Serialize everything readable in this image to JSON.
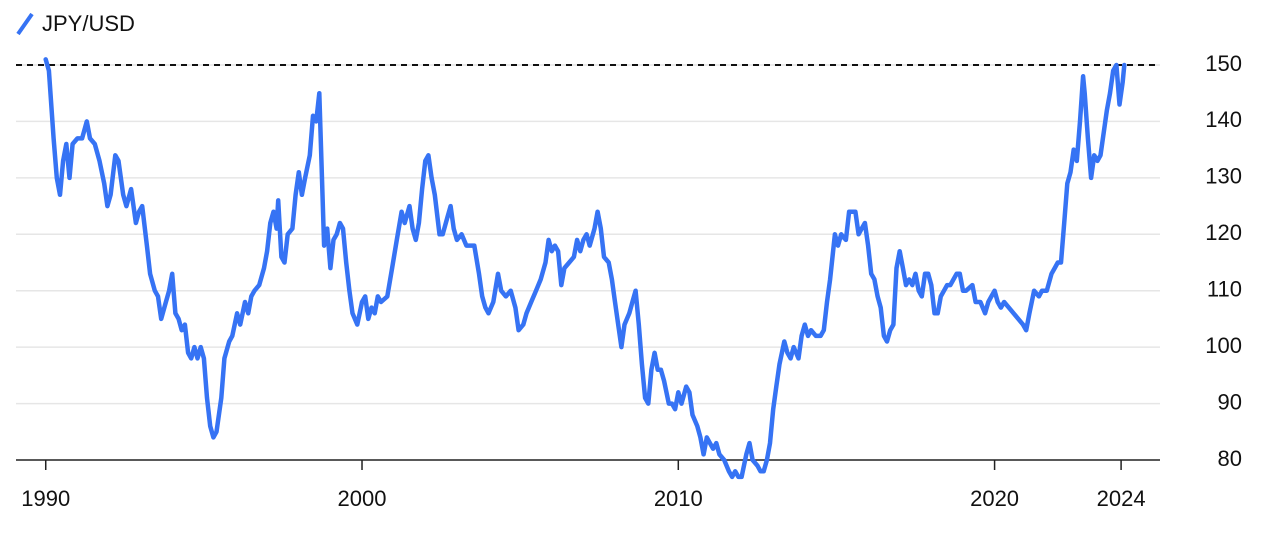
{
  "chart_data": {
    "type": "line",
    "xlim": [
      1989.06,
      2025.23
    ],
    "xticks": [
      1990,
      2000,
      2010,
      2020,
      2024
    ],
    "ylim": [
      80,
      150
    ],
    "yticks": [
      80,
      90,
      100,
      110,
      120,
      130,
      140,
      150
    ],
    "grid": true,
    "reference_line": 150,
    "legend": "top-left",
    "series": [
      {
        "name": "JPY/USD",
        "color": "#3673f4",
        "x": [
          1990.0,
          1990.1,
          1990.25,
          1990.35,
          1990.45,
          1990.55,
          1990.65,
          1990.75,
          1990.85,
          1991.0,
          1991.15,
          1991.3,
          1991.4,
          1991.55,
          1991.7,
          1991.85,
          1991.95,
          1992.05,
          1992.2,
          1992.3,
          1992.45,
          1992.55,
          1992.7,
          1992.85,
          1992.95,
          1993.05,
          1993.2,
          1993.3,
          1993.45,
          1993.55,
          1993.65,
          1993.8,
          1993.9,
          1994.0,
          1994.1,
          1994.2,
          1994.3,
          1994.4,
          1994.5,
          1994.6,
          1994.7,
          1994.8,
          1994.9,
          1995.0,
          1995.1,
          1995.2,
          1995.3,
          1995.4,
          1995.55,
          1995.65,
          1995.8,
          1995.9,
          1996.05,
          1996.15,
          1996.3,
          1996.4,
          1996.5,
          1996.6,
          1996.75,
          1996.9,
          1997.0,
          1997.1,
          1997.2,
          1997.3,
          1997.35,
          1997.45,
          1997.55,
          1997.65,
          1997.8,
          1997.9,
          1998.0,
          1998.1,
          1998.2,
          1998.35,
          1998.45,
          1998.55,
          1998.65,
          1998.8,
          1998.9,
          1999.0,
          1999.1,
          1999.2,
          1999.3,
          1999.4,
          1999.5,
          1999.6,
          1999.7,
          1999.85,
          2000.0,
          2000.1,
          2000.2,
          2000.3,
          2000.4,
          2000.5,
          2000.6,
          2000.8,
          2000.95,
          2001.1,
          2001.25,
          2001.35,
          2001.5,
          2001.6,
          2001.7,
          2001.8,
          2001.9,
          2002.0,
          2002.1,
          2002.2,
          2002.3,
          2002.45,
          2002.55,
          2002.7,
          2002.8,
          2002.9,
          2003.0,
          2003.15,
          2003.3,
          2003.4,
          2003.55,
          2003.7,
          2003.8,
          2003.9,
          2004.0,
          2004.15,
          2004.3,
          2004.4,
          2004.55,
          2004.7,
          2004.85,
          2004.95,
          2005.1,
          2005.2,
          2005.35,
          2005.5,
          2005.65,
          2005.8,
          2005.9,
          2006.0,
          2006.1,
          2006.2,
          2006.3,
          2006.4,
          2006.55,
          2006.7,
          2006.8,
          2006.9,
          2007.0,
          2007.1,
          2007.2,
          2007.35,
          2007.45,
          2007.55,
          2007.65,
          2007.8,
          2007.9,
          2008.0,
          2008.1,
          2008.2,
          2008.3,
          2008.45,
          2008.55,
          2008.65,
          2008.75,
          2008.85,
          2008.95,
          2009.05,
          2009.15,
          2009.25,
          2009.35,
          2009.45,
          2009.55,
          2009.7,
          2009.8,
          2009.9,
          2010.0,
          2010.1,
          2010.25,
          2010.35,
          2010.45,
          2010.6,
          2010.7,
          2010.8,
          2010.9,
          2011.0,
          2011.1,
          2011.2,
          2011.3,
          2011.45,
          2011.6,
          2011.7,
          2011.8,
          2011.9,
          2012.0,
          2012.15,
          2012.25,
          2012.35,
          2012.5,
          2012.6,
          2012.7,
          2012.8,
          2012.9,
          2013.0,
          2013.1,
          2013.2,
          2013.35,
          2013.45,
          2013.55,
          2013.65,
          2013.8,
          2013.9,
          2014.0,
          2014.1,
          2014.2,
          2014.35,
          2014.5,
          2014.6,
          2014.7,
          2014.8,
          2014.95,
          2015.05,
          2015.15,
          2015.3,
          2015.4,
          2015.5,
          2015.6,
          2015.7,
          2015.8,
          2015.9,
          2016.0,
          2016.1,
          2016.2,
          2016.3,
          2016.4,
          2016.5,
          2016.6,
          2016.7,
          2016.8,
          2016.9,
          2017.0,
          2017.1,
          2017.2,
          2017.3,
          2017.4,
          2017.5,
          2017.6,
          2017.7,
          2017.8,
          2017.9,
          2018.0,
          2018.1,
          2018.2,
          2018.3,
          2018.4,
          2018.5,
          2018.6,
          2018.7,
          2018.8,
          2018.9,
          2019.0,
          2019.1,
          2019.3,
          2019.4,
          2019.55,
          2019.7,
          2019.8,
          2019.9,
          2020.0,
          2020.1,
          2020.2,
          2020.3,
          2020.45,
          2020.6,
          2020.75,
          2020.9,
          2021.0,
          2021.1,
          2021.25,
          2021.4,
          2021.5,
          2021.65,
          2021.8,
          2021.9,
          2022.0,
          2022.1,
          2022.2,
          2022.3,
          2022.4,
          2022.5,
          2022.6,
          2022.7,
          2022.8,
          2022.85,
          2022.95,
          2023.05,
          2023.15,
          2023.25,
          2023.35,
          2023.45,
          2023.55,
          2023.65,
          2023.75,
          2023.85,
          2023.95,
          2024.05,
          2024.1
        ],
        "values": [
          151,
          149,
          137,
          130,
          127,
          133,
          136,
          130,
          136,
          137,
          137,
          140,
          137,
          136,
          133,
          129,
          125,
          127,
          134,
          133,
          127,
          125,
          128,
          122,
          124,
          125,
          118,
          113,
          110,
          109,
          105,
          108,
          110,
          113,
          106,
          105,
          103,
          104,
          99,
          98,
          100,
          98,
          100,
          98,
          91,
          86,
          84,
          85,
          91,
          98,
          101,
          102,
          106,
          104,
          108,
          106,
          109,
          110,
          111,
          114,
          117,
          122,
          124,
          121,
          126,
          116,
          115,
          120,
          121,
          127,
          131,
          127,
          130,
          134,
          141,
          140,
          145,
          118,
          121,
          114,
          119,
          120,
          122,
          121,
          115,
          110,
          106,
          104,
          108,
          109,
          105,
          107,
          106,
          109,
          108,
          109,
          114,
          119,
          124,
          122,
          125,
          121,
          119,
          122,
          128,
          133,
          134,
          130,
          127,
          120,
          120,
          123,
          125,
          121,
          119,
          120,
          118,
          118,
          118,
          113,
          109,
          107,
          106,
          108,
          113,
          110,
          109,
          110,
          107,
          103,
          104,
          106,
          108,
          110,
          112,
          115,
          119,
          117,
          118,
          117,
          111,
          114,
          115,
          116,
          119,
          117,
          119,
          120,
          118,
          121,
          124,
          121,
          116,
          115,
          112,
          108,
          104,
          100,
          104,
          106,
          108,
          110,
          104,
          97,
          91,
          90,
          96,
          99,
          96,
          96,
          94,
          90,
          90,
          89,
          92,
          90,
          93,
          92,
          88,
          86,
          84,
          81,
          84,
          83,
          82,
          83,
          81,
          80,
          78,
          77,
          78,
          77,
          77,
          81,
          83,
          80,
          79,
          78,
          78,
          80,
          83,
          89,
          93,
          97,
          101,
          99,
          98,
          100,
          98,
          102,
          104,
          102,
          103,
          102,
          102,
          103,
          108,
          112,
          120,
          118,
          120,
          119,
          124,
          124,
          124,
          120,
          121,
          122,
          118,
          113,
          112,
          109,
          107,
          102,
          101,
          103,
          104,
          114,
          117,
          114,
          111,
          112,
          111,
          113,
          110,
          109,
          113,
          113,
          111,
          106,
          106,
          109,
          110,
          111,
          111,
          112,
          113,
          113,
          110,
          110,
          111,
          108,
          108,
          106,
          108,
          109,
          110,
          108,
          107,
          108,
          107,
          106,
          105,
          104,
          103,
          106,
          110,
          109,
          110,
          110,
          113,
          114,
          115,
          115,
          122,
          129,
          131,
          135,
          133,
          140,
          148,
          145,
          137,
          130,
          134,
          133,
          134,
          138,
          142,
          145,
          149,
          150,
          143,
          147,
          150
        ]
      }
    ]
  }
}
